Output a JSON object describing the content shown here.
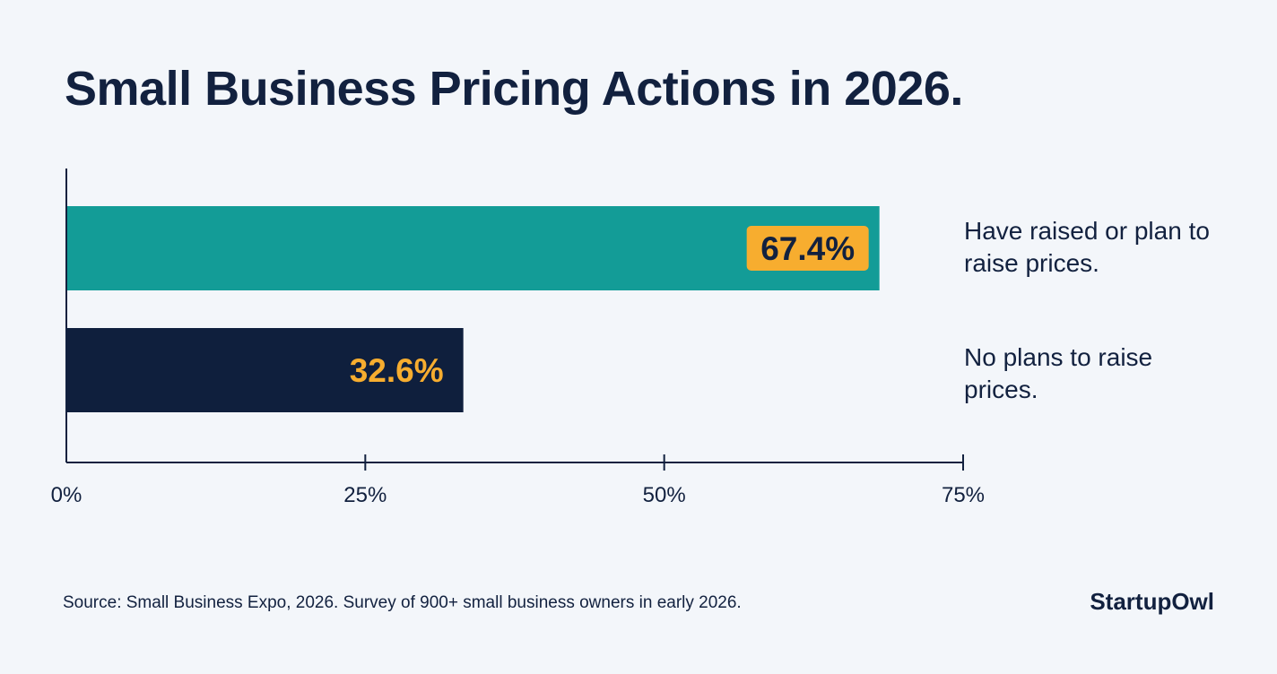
{
  "chart_data": {
    "type": "bar",
    "orientation": "horizontal",
    "title": "Small Business Pricing Actions in 2026.",
    "categories": [
      "Have raised or plan to raise prices.",
      "No plans to raise prices."
    ],
    "values": [
      67.4,
      32.6
    ],
    "data_labels": [
      "67.4%",
      "32.6%"
    ],
    "xlim": [
      0,
      75
    ],
    "xticks": [
      0,
      25,
      50,
      75
    ],
    "xtick_labels": [
      "0%",
      "25%",
      "50%",
      "75%"
    ],
    "grid": false,
    "colors": {
      "bar1": "#139c97",
      "bar2": "#0f1f3d",
      "label_badge": "#f7ad2f",
      "label_text_dark": "#12213f",
      "label_text_accent": "#f7ad2f",
      "axis": "#12213f",
      "background": "#f3f6fa"
    }
  },
  "footer": {
    "source": "Source: Small Business Expo, 2026. Survey of 900+ small business owners in early 2026.",
    "brand": "StartupOwl"
  }
}
